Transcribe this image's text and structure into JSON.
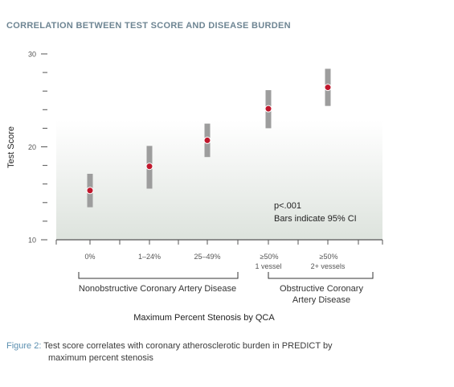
{
  "title": "CORRELATION BETWEEN TEST SCORE AND DISEASE BURDEN",
  "chart_data": {
    "type": "scatter",
    "ylabel": "Test Score",
    "xlabel": "Maximum Percent Stenosis by QCA",
    "ylim": [
      10,
      30
    ],
    "yticks": [
      "10",
      "20",
      "30"
    ],
    "categories": [
      {
        "line1": "0%",
        "line2": ""
      },
      {
        "line1": "1–24%",
        "line2": ""
      },
      {
        "line1": "25–49%",
        "line2": ""
      },
      {
        "line1": "≥50%",
        "line2": "1 vessel"
      },
      {
        "line1": "≥50%",
        "line2": "2+ vessels"
      }
    ],
    "points": [
      {
        "mean": 15.3,
        "ci_low": 13.5,
        "ci_high": 17.1
      },
      {
        "mean": 17.9,
        "ci_low": 15.5,
        "ci_high": 20.1
      },
      {
        "mean": 20.7,
        "ci_low": 18.9,
        "ci_high": 22.5
      },
      {
        "mean": 24.1,
        "ci_low": 22.0,
        "ci_high": 26.1
      },
      {
        "mean": 26.4,
        "ci_low": 24.4,
        "ci_high": 28.4
      }
    ],
    "groups": [
      {
        "label_lines": [
          "Nonobstructive Coronary Artery Disease"
        ],
        "from": 0,
        "to": 2
      },
      {
        "label_lines": [
          "Obstructive Coronary",
          "Artery Disease"
        ],
        "from": 3,
        "to": 4
      }
    ],
    "annotations": [
      "p<.001",
      "Bars indicate 95% CI"
    ],
    "colors": {
      "point": "#c0172c",
      "bar": "#9d9d9d",
      "axis": "#555555",
      "shade": "#e3e8e3"
    }
  },
  "caption": {
    "lead": "Figure 2:",
    "text": "Test score correlates with coronary atherosclerotic burden in PREDICT by",
    "text2": "maximum percent stenosis"
  }
}
